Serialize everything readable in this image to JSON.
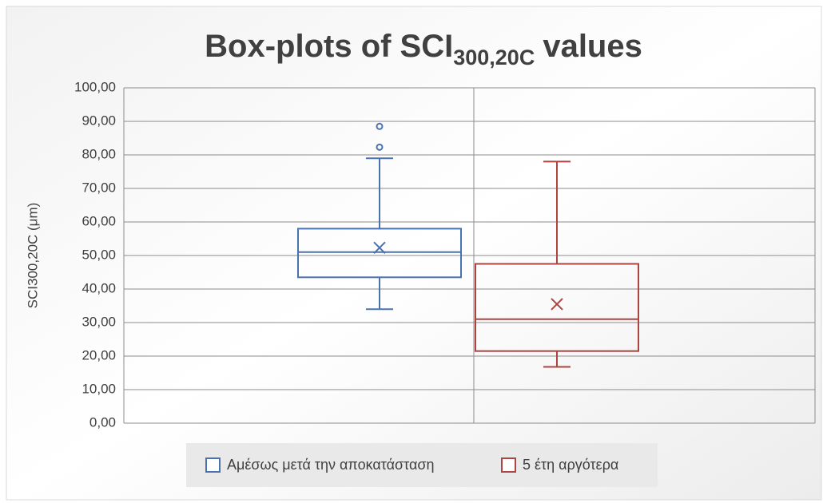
{
  "chart_data": {
    "type": "box",
    "title": "Box-plots of SCI",
    "title_subscript": "300,20C",
    "title_suffix": "values",
    "y_label": "SCI300,20C (μm)",
    "ylim": [
      0,
      100
    ],
    "yticks": [
      {
        "value": 0,
        "label": "0,00"
      },
      {
        "value": 10,
        "label": "10,00"
      },
      {
        "value": 20,
        "label": "20,00"
      },
      {
        "value": 30,
        "label": "30,00"
      },
      {
        "value": 40,
        "label": "40,00"
      },
      {
        "value": 50,
        "label": "50,00"
      },
      {
        "value": 60,
        "label": "60,00"
      },
      {
        "value": 70,
        "label": "70,00"
      },
      {
        "value": 80,
        "label": "80,00"
      },
      {
        "value": 90,
        "label": "90,00"
      },
      {
        "value": 100,
        "label": "100,00"
      }
    ],
    "grid": true,
    "legend": "bottom",
    "series": [
      {
        "name": "Αμέσως μετά την αποκατάσταση",
        "color": "#4a72b0",
        "min": 34,
        "q1": 43.5,
        "median": 51,
        "q3": 58,
        "max": 79,
        "mean": 52.3,
        "outliers": [
          82.3,
          88.5
        ]
      },
      {
        "name": "5 έτη αργότερα",
        "color": "#ad4440",
        "min": 16.8,
        "q1": 21.5,
        "median": 31,
        "q3": 47.5,
        "max": 78,
        "mean": 35.5,
        "outliers": []
      }
    ]
  }
}
